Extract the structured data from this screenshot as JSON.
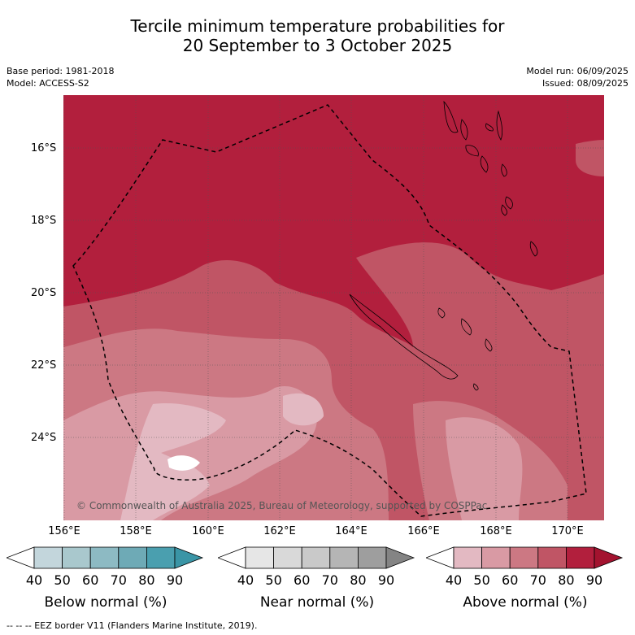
{
  "title_line1": "Tercile minimum temperature probabilities for",
  "title_line2": "20 September to 3 October 2025",
  "base_period": "Base period: 1981-2018",
  "model": "Model: ACCESS-S2",
  "model_run": "Model run: 06/09/2025",
  "issued": "Issued: 08/09/2025",
  "copyright": "© Commonwealth of Australia 2025, Bureau of Meteorology, supported by COSPPac",
  "lat_labels": [
    "16°S",
    "18°S",
    "20°S",
    "22°S",
    "24°S"
  ],
  "lon_labels": [
    "156°E",
    "158°E",
    "160°E",
    "162°E",
    "164°E",
    "166°E",
    "168°E",
    "170°E"
  ],
  "colorbars": [
    {
      "title": "Below normal (%)",
      "ticks": [
        "40",
        "50",
        "60",
        "70",
        "80",
        "90"
      ],
      "colors": [
        "#ffffff",
        "#c3d6dc",
        "#a9c8cd",
        "#8dbac3",
        "#6eaab6",
        "#4a9faf",
        "#3a95a6"
      ]
    },
    {
      "title": "Near normal (%)",
      "ticks": [
        "40",
        "50",
        "60",
        "70",
        "80",
        "90"
      ],
      "colors": [
        "#ffffff",
        "#e6e6e6",
        "#d9d9d9",
        "#c9c9c9",
        "#b5b5b5",
        "#9e9e9e",
        "#848484"
      ]
    },
    {
      "title": "Above normal (%)",
      "ticks": [
        "40",
        "50",
        "60",
        "70",
        "80",
        "90"
      ],
      "colors": [
        "#ffffff",
        "#e3b9c2",
        "#d99aa4",
        "#cc7883",
        "#c05565",
        "#b21f3d",
        "#a3132f"
      ]
    }
  ],
  "footer": "--  --  -- EEZ border V11 (Flanders Marine Institute, 2019)."
}
